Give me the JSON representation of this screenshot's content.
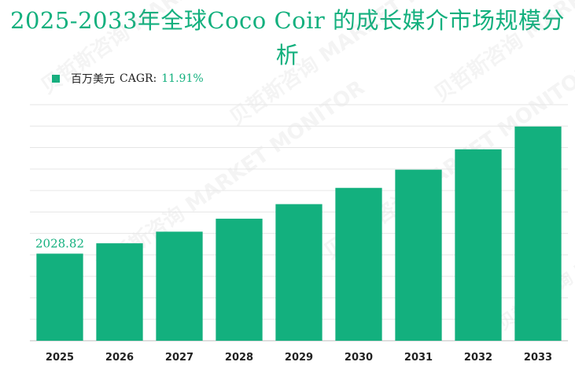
{
  "title": "2025-2033年全球Coco Coir 的成长媒介市场规模分析",
  "colors": {
    "bar": "#13b07e",
    "title": "#13b07e",
    "grid": "#e6e6e6"
  },
  "legend": {
    "series_label": "百万美元",
    "cagr_label": "CAGR:",
    "cagr_value": "11.91%"
  },
  "watermark": {
    "cn": "贝哲斯咨询",
    "en": "MARKET MONITOR"
  },
  "chart_data": {
    "type": "bar",
    "categories": [
      "2025",
      "2026",
      "2027",
      "2028",
      "2029",
      "2030",
      "2031",
      "2032",
      "2033"
    ],
    "series": [
      {
        "name": "百万美元",
        "values": [
          2028.82,
          2270.4,
          2540.9,
          2843.5,
          3182.2,
          3561.3,
          3985.4,
          4460.1,
          4991.3
        ]
      }
    ],
    "data_labels": [
      "2028.82",
      "",
      "",
      "",
      "",
      "",
      "",
      "",
      ""
    ],
    "ylim": [
      0,
      5500
    ],
    "grid": true
  }
}
